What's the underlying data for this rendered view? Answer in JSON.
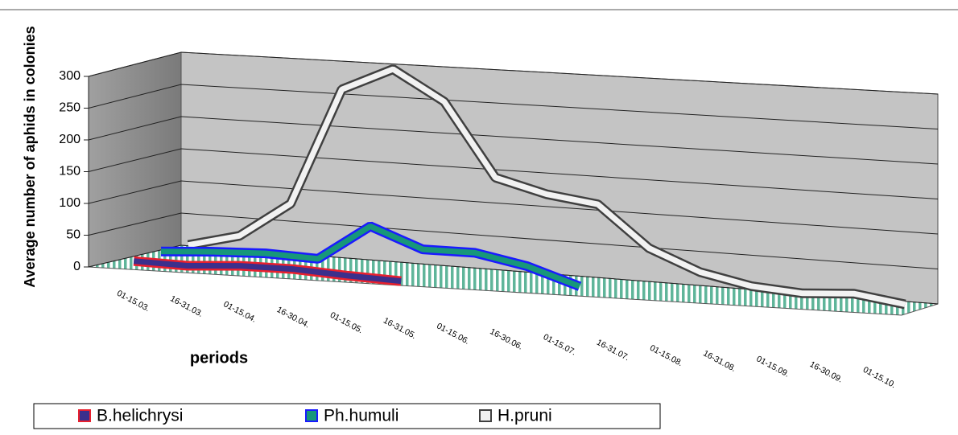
{
  "chart_data": {
    "type": "line",
    "y_label": "Average number of aphids in colonies",
    "x_label": "periods",
    "categories": [
      "01-15.03.",
      "16-31.03.",
      "01-15.04.",
      "16-30.04.",
      "01-15.05.",
      "16-31.05.",
      "01-15.06.",
      "16-30.06.",
      "01-15.07.",
      "16-31.07.",
      "01-15.08.",
      "16-31.08.",
      "01-15.09.",
      "16-30.09.",
      "01-15.10."
    ],
    "series": [
      {
        "name": "B.helichrysi",
        "color": "#3b2f8c",
        "border_color": "#e8202e",
        "values": [
          5,
          3,
          8,
          8,
          3,
          0,
          null,
          null,
          null,
          null,
          null,
          null,
          null,
          null,
          null
        ]
      },
      {
        "name": "Ph.humuli",
        "color": "#17977a",
        "border_color": "#1a1aff",
        "values": [
          10,
          15,
          18,
          15,
          70,
          40,
          40,
          25,
          0,
          null,
          null,
          null,
          null,
          null,
          null
        ]
      },
      {
        "name": "H.pruni",
        "color": "#f2f2f2",
        "border_color": "#404040",
        "values": [
          10,
          30,
          85,
          265,
          300,
          255,
          145,
          125,
          115,
          55,
          25,
          10,
          5,
          10,
          0
        ]
      }
    ],
    "ylim": [
      0,
      300
    ],
    "yticks": [
      0,
      50,
      100,
      150,
      200,
      250,
      300
    ],
    "grid": true,
    "legend": "bottom"
  }
}
